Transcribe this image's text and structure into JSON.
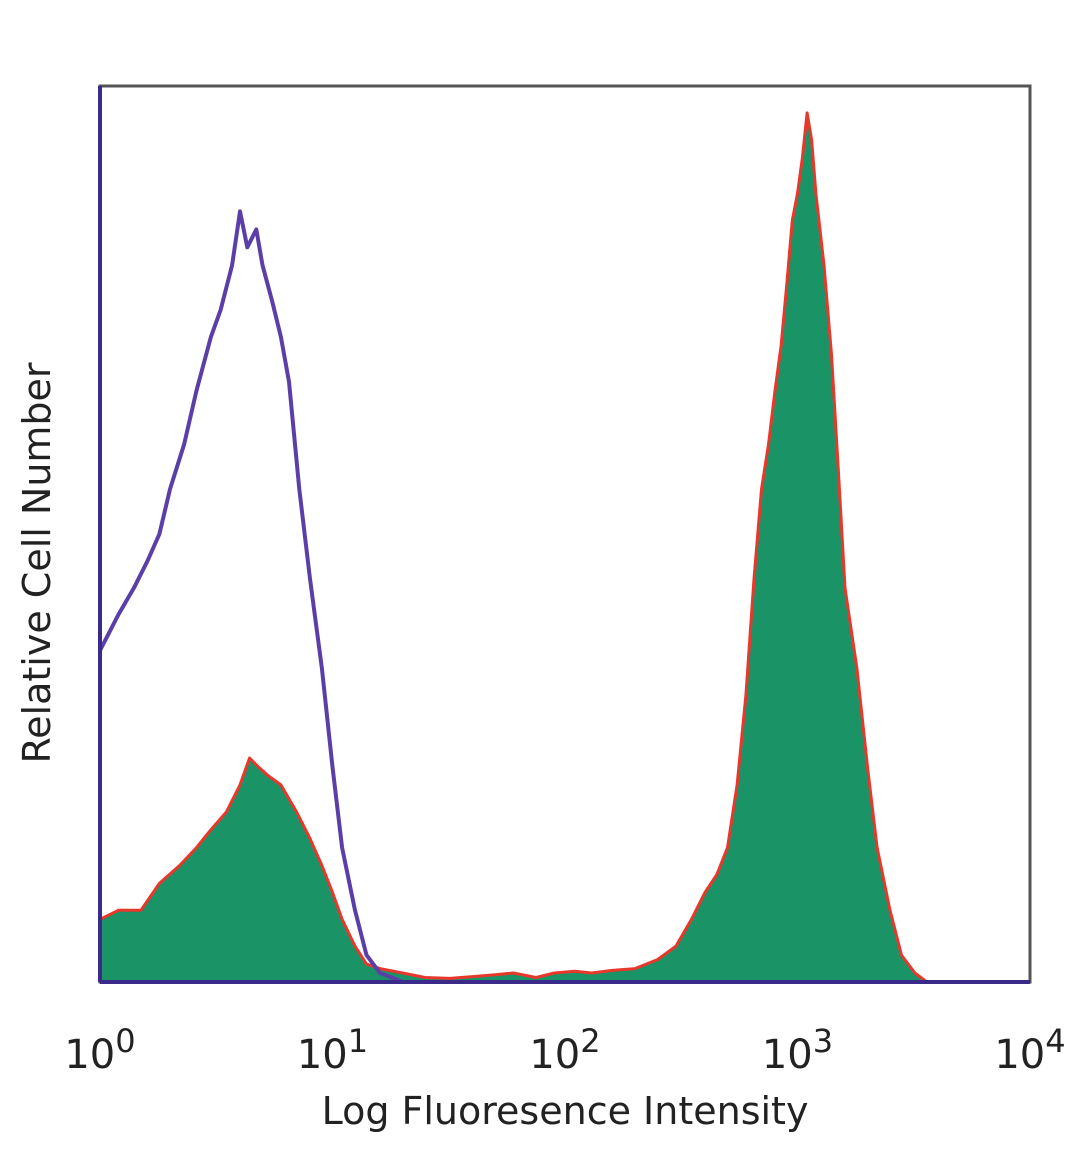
{
  "chart_data": {
    "type": "area",
    "title": "",
    "xlabel": "Log Fluoresence Intensity",
    "ylabel": "Relative Cell Number",
    "x_scale": "log",
    "xlim": [
      1,
      10000
    ],
    "ylim": [
      0,
      100
    ],
    "grid": false,
    "legend": "none",
    "x_ticks": [
      {
        "value": 1,
        "base": "10",
        "exp": "0"
      },
      {
        "value": 10,
        "base": "10",
        "exp": "1"
      },
      {
        "value": 100,
        "base": "10",
        "exp": "2"
      },
      {
        "value": 1000,
        "base": "10",
        "exp": "3"
      },
      {
        "value": 10000,
        "base": "10",
        "exp": "4"
      }
    ],
    "series": [
      {
        "style": "line",
        "color": "#5b3fa8",
        "x": [
          1.0,
          1.2,
          1.4,
          1.6,
          1.8,
          2.0,
          2.3,
          2.6,
          3.0,
          3.3,
          3.7,
          4.0,
          4.3,
          4.7,
          5.0,
          5.5,
          6.0,
          6.5,
          7.2,
          8.0,
          9.0,
          10.0,
          11.0,
          12.5,
          14.0,
          16.0,
          18.0,
          20.0,
          25.0,
          10000
        ],
        "values": [
          37,
          41,
          44,
          47,
          50,
          55,
          60,
          66,
          72,
          75,
          80,
          86,
          82,
          84,
          80,
          76,
          72,
          67,
          55,
          45,
          35,
          24,
          15,
          8,
          3,
          1,
          0.5,
          0,
          0,
          0
        ]
      },
      {
        "style": "filled",
        "color": "#1a9466",
        "edge_color": "#e8382c",
        "x": [
          1.0,
          1.2,
          1.5,
          1.8,
          2.2,
          2.6,
          3.0,
          3.5,
          4.0,
          4.4,
          4.8,
          5.3,
          6.0,
          7.0,
          8.0,
          9.0,
          10.0,
          11.0,
          12.5,
          14.0,
          16.0,
          20.0,
          25.0,
          32.0,
          40.0,
          50.0,
          60.0,
          75.0,
          90.0,
          110.0,
          130.0,
          160.0,
          200.0,
          250.0,
          300.0,
          350.0,
          400.0,
          450.0,
          500.0,
          550.0,
          600.0,
          650.0,
          700.0,
          750.0,
          800.0,
          850.0,
          900.0,
          950.0,
          1000.0,
          1050.0,
          1100.0,
          1150.0,
          1200.0,
          1300.0,
          1400.0,
          1500.0,
          1600.0,
          1800.0,
          2000.0,
          2200.0,
          2500.0,
          2800.0,
          3200.0,
          3600.0,
          10000
        ],
        "values": [
          7,
          8,
          8,
          11,
          13,
          15,
          17,
          19,
          22,
          25,
          24,
          23,
          22,
          19,
          16,
          13,
          10,
          7,
          4,
          2,
          1.5,
          1,
          0.5,
          0.4,
          0.6,
          0.8,
          1,
          0.5,
          1,
          1.2,
          1,
          1.3,
          1.5,
          2.5,
          4,
          7,
          10,
          12,
          15,
          22,
          32,
          45,
          55,
          60,
          66,
          71,
          78,
          85,
          88,
          92,
          97,
          94,
          88,
          80,
          70,
          57,
          44,
          35,
          24,
          15,
          8,
          3,
          1,
          0,
          0
        ]
      }
    ]
  }
}
